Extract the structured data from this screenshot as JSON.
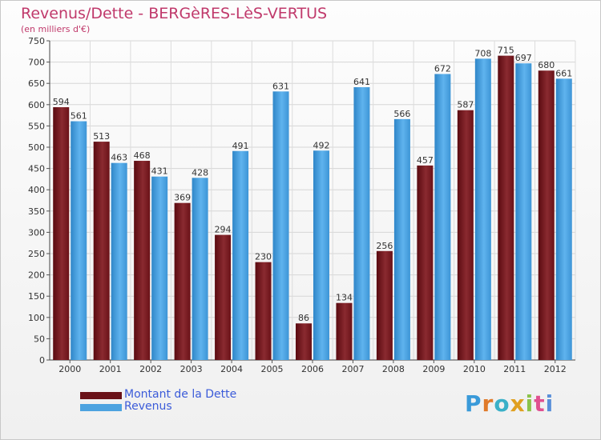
{
  "title": "Revenus/Dette - BERGèRES-LèS-VERTUS",
  "subtitle": "(en milliers d'€)",
  "logo_text": "Proxiti",
  "colors": {
    "title": "#c0396b",
    "debt_series": "#7a1a1f",
    "revenue_series": "#4da3e0",
    "legend_text": "#3b5bd9"
  },
  "chart_data": {
    "type": "bar",
    "title": "Revenus/Dette - BERGèRES-LèS-VERTUS",
    "subtitle": "(en milliers d'€)",
    "categories": [
      "2000",
      "2001",
      "2002",
      "2003",
      "2004",
      "2005",
      "2006",
      "2007",
      "2008",
      "2009",
      "2010",
      "2011",
      "2012"
    ],
    "series": [
      {
        "name": "Montant de la Dette",
        "values": [
          594,
          513,
          468,
          369,
          294,
          230,
          86,
          134,
          256,
          457,
          587,
          715,
          680
        ]
      },
      {
        "name": "Revenus",
        "values": [
          561,
          463,
          431,
          428,
          491,
          631,
          492,
          641,
          566,
          672,
          708,
          697,
          661
        ]
      }
    ],
    "ylim": [
      0,
      750
    ],
    "yticks": [
      0,
      50,
      100,
      150,
      200,
      250,
      300,
      350,
      400,
      450,
      500,
      550,
      600,
      650,
      700,
      750
    ],
    "grid": true,
    "legend_position": "bottom-left"
  }
}
